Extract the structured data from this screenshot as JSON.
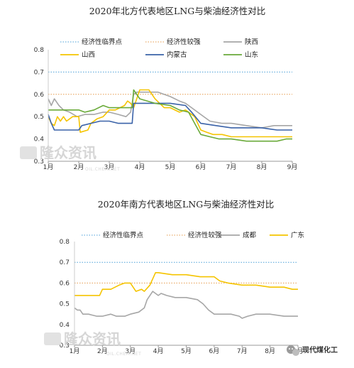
{
  "chart_data": [
    {
      "type": "line",
      "title": "2020年北方代表地区LNG与柴油经济性对比",
      "x_ticks": [
        "1月",
        "2月",
        "3月",
        "4月",
        "5月",
        "6月",
        "7月",
        "8月",
        "9月"
      ],
      "y_ticks": [
        "0.3",
        "0.4",
        "0.5",
        "0.6",
        "0.7",
        "0.8"
      ],
      "ylim": [
        0.3,
        0.8
      ],
      "xlim": [
        1,
        9
      ],
      "legend_placement": "top",
      "reference_lines": [
        {
          "name": "经济性临界点",
          "value": 0.7,
          "color": "#4a9fd8",
          "style": "dotted"
        },
        {
          "name": "经济性较强",
          "value": 0.6,
          "color": "#e59a4a",
          "style": "dotted"
        }
      ],
      "series": [
        {
          "name": "陕西",
          "color": "#a6a6a6",
          "x": [
            1.0,
            1.1,
            1.2,
            1.35,
            1.5,
            1.7,
            1.95,
            2.2,
            2.5,
            2.8,
            3.0,
            3.3,
            3.55,
            3.7,
            3.8,
            3.9,
            4.2,
            4.6,
            5.0,
            5.3,
            5.5,
            5.7,
            6.0,
            6.3,
            6.7,
            7.0,
            7.5,
            8.0,
            8.4,
            8.6,
            9.0
          ],
          "y": [
            0.58,
            0.55,
            0.58,
            0.55,
            0.53,
            0.52,
            0.5,
            0.51,
            0.51,
            0.52,
            0.52,
            0.51,
            0.5,
            0.52,
            0.6,
            0.61,
            0.61,
            0.61,
            0.59,
            0.57,
            0.56,
            0.54,
            0.51,
            0.48,
            0.47,
            0.47,
            0.46,
            0.45,
            0.46,
            0.46,
            0.46
          ]
        },
        {
          "name": "山西",
          "color": "#f5c400",
          "x": [
            1.0,
            1.1,
            1.2,
            1.3,
            1.4,
            1.5,
            1.6,
            1.8,
            2.0,
            2.05,
            2.3,
            2.4,
            2.6,
            2.8,
            3.0,
            3.2,
            3.5,
            3.6,
            3.7,
            3.8,
            3.85,
            4.0,
            4.3,
            4.5,
            4.8,
            5.0,
            5.3,
            5.5,
            5.8,
            6.0,
            6.2,
            6.4,
            6.7,
            7.0,
            7.5,
            8.0,
            8.5,
            8.8,
            9.0
          ],
          "y": [
            0.5,
            0.47,
            0.46,
            0.5,
            0.48,
            0.5,
            0.48,
            0.5,
            0.5,
            0.43,
            0.44,
            0.47,
            0.49,
            0.5,
            0.53,
            0.53,
            0.55,
            0.57,
            0.56,
            0.54,
            0.56,
            0.62,
            0.62,
            0.58,
            0.54,
            0.54,
            0.52,
            0.53,
            0.5,
            0.44,
            0.43,
            0.42,
            0.42,
            0.41,
            0.41,
            0.41,
            0.41,
            0.41,
            0.41
          ]
        },
        {
          "name": "内蒙古",
          "color": "#3a62a8",
          "x": [
            1.0,
            1.1,
            1.2,
            1.5,
            2.0,
            2.1,
            2.4,
            2.7,
            3.0,
            3.3,
            3.6,
            3.75,
            3.8,
            4.0,
            4.5,
            5.0,
            5.5,
            5.7,
            6.0,
            6.5,
            7.0,
            7.5,
            8.0,
            8.5,
            9.0
          ],
          "y": [
            0.51,
            0.47,
            0.44,
            0.44,
            0.44,
            0.46,
            0.47,
            0.48,
            0.48,
            0.47,
            0.47,
            0.47,
            0.56,
            0.56,
            0.56,
            0.56,
            0.55,
            0.52,
            0.47,
            0.46,
            0.45,
            0.45,
            0.45,
            0.44,
            0.44
          ]
        },
        {
          "name": "山东",
          "color": "#6aaa3a",
          "x": [
            1.0,
            1.5,
            2.0,
            2.2,
            2.5,
            2.8,
            3.0,
            3.3,
            3.6,
            3.75,
            3.8,
            4.0,
            4.5,
            5.0,
            5.3,
            5.6,
            5.8,
            6.0,
            6.3,
            6.6,
            7.0,
            7.5,
            8.0,
            8.5,
            8.8,
            9.0
          ],
          "y": [
            0.53,
            0.53,
            0.53,
            0.52,
            0.53,
            0.55,
            0.54,
            0.54,
            0.54,
            0.54,
            0.62,
            0.58,
            0.56,
            0.55,
            0.53,
            0.52,
            0.47,
            0.42,
            0.41,
            0.4,
            0.4,
            0.39,
            0.39,
            0.39,
            0.4,
            0.4
          ]
        }
      ]
    },
    {
      "type": "line",
      "title": "2020年南方代表地区LNG与柴油经济性对比",
      "x_ticks": [
        "1月",
        "2月",
        "3月",
        "4月",
        "5月",
        "6月",
        "7月",
        "8月",
        "9月"
      ],
      "y_ticks": [
        "0.3",
        "0.4",
        "0.5",
        "0.6",
        "0.7",
        "0.8"
      ],
      "ylim": [
        0.3,
        0.8
      ],
      "xlim": [
        1,
        9
      ],
      "legend_placement": "top",
      "reference_lines": [
        {
          "name": "经济性临界点",
          "value": 0.7,
          "color": "#4a9fd8",
          "style": "dotted"
        },
        {
          "name": "经济性较强",
          "value": 0.6,
          "color": "#e59a4a",
          "style": "dotted"
        }
      ],
      "series": [
        {
          "name": "成都",
          "color": "#a6a6a6",
          "x": [
            1.0,
            1.1,
            1.2,
            1.3,
            1.5,
            1.8,
            2.0,
            2.3,
            2.5,
            2.8,
            3.0,
            3.3,
            3.5,
            3.6,
            3.8,
            3.9,
            4.0,
            4.1,
            4.3,
            4.6,
            5.0,
            5.4,
            5.6,
            5.8,
            6.0,
            6.3,
            6.6,
            6.9,
            7.0,
            7.2,
            7.5,
            8.0,
            8.5,
            9.0
          ],
          "y": [
            0.48,
            0.47,
            0.47,
            0.45,
            0.45,
            0.44,
            0.44,
            0.45,
            0.44,
            0.44,
            0.45,
            0.46,
            0.48,
            0.52,
            0.56,
            0.55,
            0.54,
            0.55,
            0.54,
            0.53,
            0.53,
            0.52,
            0.5,
            0.47,
            0.45,
            0.45,
            0.45,
            0.44,
            0.43,
            0.44,
            0.45,
            0.45,
            0.44,
            0.44
          ]
        },
        {
          "name": "广东",
          "color": "#f5c400",
          "x": [
            1.0,
            1.5,
            1.9,
            2.0,
            2.3,
            2.6,
            2.8,
            3.0,
            3.2,
            3.4,
            3.5,
            3.7,
            3.9,
            4.0,
            4.5,
            5.0,
            5.5,
            6.0,
            6.2,
            6.5,
            7.0,
            7.5,
            8.0,
            8.5,
            8.8,
            9.0
          ],
          "y": [
            0.54,
            0.54,
            0.54,
            0.57,
            0.57,
            0.59,
            0.6,
            0.6,
            0.56,
            0.57,
            0.56,
            0.59,
            0.65,
            0.65,
            0.64,
            0.64,
            0.63,
            0.63,
            0.61,
            0.6,
            0.59,
            0.59,
            0.58,
            0.58,
            0.57,
            0.57
          ]
        }
      ]
    }
  ],
  "watermarks": [
    {
      "text": "隆众资讯",
      "sub": "OIL.CHEM.NET"
    },
    {
      "text": "隆众资讯",
      "sub": "OIL.CHEM.NET"
    }
  ],
  "credit": {
    "text": "现代煤化工",
    "icon": "wechat-icon"
  }
}
